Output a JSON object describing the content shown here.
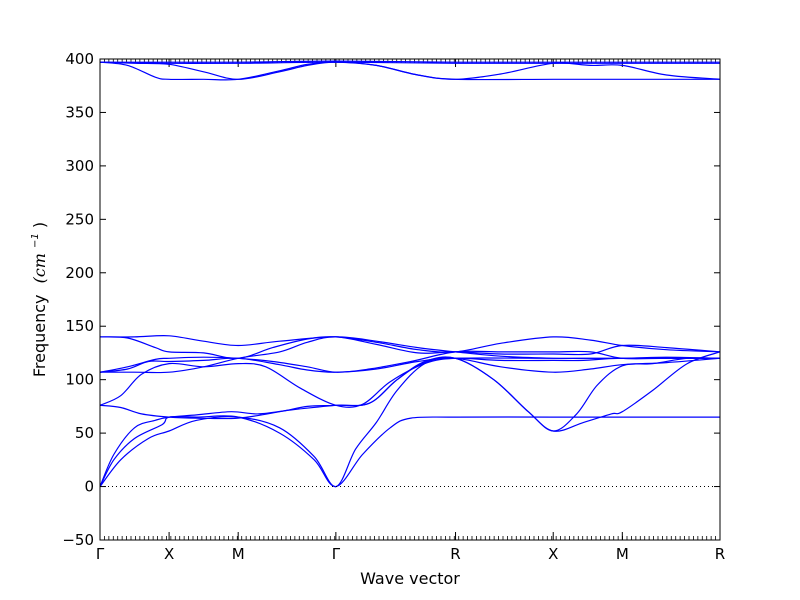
{
  "chart_data": {
    "type": "line",
    "xlabel": "Wave vector",
    "ylabel": "Frequency",
    "ylabel_unit": "(cm",
    "ylabel_unit_exp": "−1",
    "ylabel_unit_close": ")",
    "ylim": [
      -50,
      400
    ],
    "yticks": [
      -50,
      0,
      50,
      100,
      150,
      200,
      250,
      300,
      350,
      400
    ],
    "xticks": [
      {
        "label": "Γ",
        "x": 0.0
      },
      {
        "label": "X",
        "x": 0.5
      },
      {
        "label": "M",
        "x": 1.0
      },
      {
        "label": "Γ",
        "x": 1.707
      },
      {
        "label": "R",
        "x": 2.573
      },
      {
        "label": "X",
        "x": 3.28
      },
      {
        "label": "M",
        "x": 3.78
      },
      {
        "label": "R",
        "x": 4.487
      }
    ],
    "xlim": [
      0,
      4.487
    ],
    "zero_line": true,
    "line_color": "#0000ff",
    "series": [
      {
        "values": [
          [
            0,
            0
          ],
          [
            0.1,
            25
          ],
          [
            0.25,
            45
          ],
          [
            0.45,
            58
          ],
          [
            0.5,
            65
          ],
          [
            0.7,
            65
          ],
          [
            1.0,
            65
          ],
          [
            1.3,
            50
          ],
          [
            1.55,
            25
          ],
          [
            1.707,
            0
          ],
          [
            1.9,
            30
          ],
          [
            2.1,
            55
          ],
          [
            2.25,
            64
          ],
          [
            2.573,
            65
          ],
          [
            3.28,
            65
          ],
          [
            3.78,
            65
          ],
          [
            4.487,
            65
          ]
        ]
      },
      {
        "values": [
          [
            0,
            0
          ],
          [
            0.15,
            25
          ],
          [
            0.35,
            45
          ],
          [
            0.5,
            52
          ],
          [
            0.7,
            62
          ],
          [
            1.0,
            65
          ],
          [
            1.3,
            55
          ],
          [
            1.55,
            28
          ],
          [
            1.707,
            0
          ],
          [
            1.85,
            35
          ],
          [
            2.0,
            60
          ],
          [
            2.15,
            90
          ],
          [
            2.35,
            115
          ],
          [
            2.573,
            120
          ],
          [
            2.85,
            100
          ],
          [
            3.1,
            70
          ],
          [
            3.28,
            52
          ],
          [
            3.5,
            60
          ],
          [
            3.7,
            68
          ],
          [
            3.78,
            70
          ],
          [
            4.0,
            90
          ],
          [
            4.25,
            115
          ],
          [
            4.487,
            126
          ]
        ]
      },
      {
        "values": [
          [
            0,
            0
          ],
          [
            0.1,
            30
          ],
          [
            0.25,
            55
          ],
          [
            0.4,
            62
          ],
          [
            0.5,
            65
          ],
          [
            0.7,
            67
          ],
          [
            0.95,
            70
          ],
          [
            1.15,
            68
          ],
          [
            1.4,
            72
          ],
          [
            1.707,
            76
          ],
          [
            1.95,
            78
          ],
          [
            2.15,
            100
          ],
          [
            2.35,
            117
          ],
          [
            2.573,
            120
          ],
          [
            2.85,
            100
          ],
          [
            3.1,
            70
          ],
          [
            3.28,
            52
          ],
          [
            3.45,
            68
          ],
          [
            3.6,
            95
          ],
          [
            3.78,
            113
          ],
          [
            4.0,
            115
          ],
          [
            4.25,
            120
          ],
          [
            4.487,
            120
          ]
        ]
      },
      {
        "values": [
          [
            0,
            76
          ],
          [
            0.15,
            74
          ],
          [
            0.3,
            68
          ],
          [
            0.5,
            65
          ],
          [
            0.7,
            64
          ],
          [
            1.0,
            64
          ],
          [
            1.3,
            70
          ],
          [
            1.5,
            75
          ],
          [
            1.707,
            76
          ],
          [
            1.95,
            78
          ],
          [
            2.15,
            100
          ],
          [
            2.35,
            116
          ],
          [
            2.573,
            120
          ],
          [
            3.28,
            120
          ],
          [
            3.78,
            120
          ],
          [
            4.487,
            120
          ]
        ]
      },
      {
        "values": [
          [
            0,
            76
          ],
          [
            0.15,
            85
          ],
          [
            0.3,
            105
          ],
          [
            0.5,
            115
          ],
          [
            0.75,
            112
          ],
          [
            1.0,
            115
          ],
          [
            1.2,
            112
          ],
          [
            1.45,
            92
          ],
          [
            1.707,
            76
          ],
          [
            1.9,
            77
          ],
          [
            2.1,
            98
          ],
          [
            2.35,
            115
          ],
          [
            2.573,
            120
          ],
          [
            2.9,
            118
          ],
          [
            3.28,
            118
          ],
          [
            3.5,
            118
          ],
          [
            3.78,
            120
          ],
          [
            4.487,
            120
          ]
        ]
      },
      {
        "values": [
          [
            0,
            107
          ],
          [
            0.2,
            110
          ],
          [
            0.35,
            117
          ],
          [
            0.5,
            117
          ],
          [
            0.75,
            118
          ],
          [
            1.0,
            120
          ],
          [
            1.3,
            114
          ],
          [
            1.5,
            109
          ],
          [
            1.707,
            107
          ],
          [
            2.0,
            110
          ],
          [
            2.3,
            117
          ],
          [
            2.573,
            120
          ],
          [
            2.9,
            112
          ],
          [
            3.28,
            107
          ],
          [
            3.55,
            110
          ],
          [
            3.78,
            114
          ],
          [
            4.1,
            116
          ],
          [
            4.487,
            120
          ]
        ]
      },
      {
        "values": [
          [
            0,
            107
          ],
          [
            0.25,
            107
          ],
          [
            0.5,
            107
          ],
          [
            0.75,
            112
          ],
          [
            1.0,
            120
          ],
          [
            1.3,
            126
          ],
          [
            1.5,
            135
          ],
          [
            1.707,
            140
          ],
          [
            2.0,
            133
          ],
          [
            2.3,
            125
          ],
          [
            2.573,
            126
          ],
          [
            2.9,
            124
          ],
          [
            3.28,
            124
          ],
          [
            3.55,
            124
          ],
          [
            3.78,
            132
          ],
          [
            4.1,
            130
          ],
          [
            4.487,
            126
          ]
        ]
      },
      {
        "values": [
          [
            0,
            107
          ],
          [
            0.2,
            112
          ],
          [
            0.4,
            119
          ],
          [
            0.5,
            120
          ],
          [
            0.75,
            121
          ],
          [
            1.0,
            120
          ],
          [
            1.25,
            117
          ],
          [
            1.5,
            112
          ],
          [
            1.707,
            107
          ],
          [
            1.95,
            110
          ],
          [
            2.25,
            117
          ],
          [
            2.573,
            126
          ],
          [
            2.9,
            126
          ],
          [
            3.28,
            126
          ],
          [
            3.55,
            126
          ],
          [
            3.78,
            120
          ],
          [
            4.1,
            120
          ],
          [
            4.487,
            120
          ]
        ]
      },
      {
        "values": [
          [
            0,
            140
          ],
          [
            0.2,
            139
          ],
          [
            0.4,
            130
          ],
          [
            0.5,
            126
          ],
          [
            0.75,
            125
          ],
          [
            1.0,
            120
          ],
          [
            1.25,
            130
          ],
          [
            1.5,
            138
          ],
          [
            1.707,
            140
          ],
          [
            2.0,
            135
          ],
          [
            2.3,
            128
          ],
          [
            2.573,
            126
          ],
          [
            2.9,
            134
          ],
          [
            3.28,
            140
          ],
          [
            3.55,
            137
          ],
          [
            3.78,
            132
          ],
          [
            4.1,
            128
          ],
          [
            4.487,
            126
          ]
        ]
      },
      {
        "values": [
          [
            0,
            140
          ],
          [
            0.25,
            140
          ],
          [
            0.5,
            141
          ],
          [
            0.75,
            136
          ],
          [
            1.0,
            132
          ],
          [
            1.3,
            136
          ],
          [
            1.707,
            140
          ],
          [
            2.0,
            136
          ],
          [
            2.3,
            130
          ],
          [
            2.573,
            126
          ],
          [
            2.9,
            122
          ],
          [
            3.28,
            120
          ],
          [
            3.55,
            120
          ],
          [
            3.78,
            120
          ],
          [
            4.1,
            121
          ],
          [
            4.487,
            120
          ]
        ]
      },
      {
        "values": [
          [
            0,
            397
          ],
          [
            0.25,
            396
          ],
          [
            0.5,
            395
          ],
          [
            0.75,
            388
          ],
          [
            1.0,
            381
          ],
          [
            1.3,
            388
          ],
          [
            1.5,
            394
          ],
          [
            1.707,
            397
          ],
          [
            2.0,
            394
          ],
          [
            2.3,
            385
          ],
          [
            2.573,
            381
          ],
          [
            2.9,
            386
          ],
          [
            3.28,
            396
          ],
          [
            3.55,
            394
          ],
          [
            3.78,
            394
          ],
          [
            4.1,
            385
          ],
          [
            4.487,
            381
          ]
        ]
      },
      {
        "values": [
          [
            0,
            397
          ],
          [
            0.2,
            394
          ],
          [
            0.4,
            383
          ],
          [
            0.5,
            381
          ],
          [
            0.75,
            381
          ],
          [
            1.0,
            381
          ],
          [
            1.3,
            389
          ],
          [
            1.5,
            395
          ],
          [
            1.707,
            397
          ],
          [
            2.0,
            394
          ],
          [
            2.3,
            385
          ],
          [
            2.573,
            381
          ],
          [
            3.28,
            381
          ],
          [
            3.78,
            381
          ],
          [
            4.487,
            381
          ]
        ]
      },
      {
        "values": [
          [
            0,
            397
          ],
          [
            0.5,
            396
          ],
          [
            1.0,
            396
          ],
          [
            1.707,
            397
          ],
          [
            2.573,
            396
          ],
          [
            3.28,
            396
          ],
          [
            3.78,
            396
          ],
          [
            4.487,
            396
          ]
        ]
      },
      {
        "values": [
          [
            0,
            397
          ],
          [
            0.5,
            397
          ],
          [
            1.0,
            397
          ],
          [
            1.707,
            398
          ],
          [
            2.573,
            397
          ],
          [
            3.28,
            397
          ],
          [
            3.78,
            397
          ],
          [
            4.487,
            397
          ]
        ]
      }
    ]
  }
}
